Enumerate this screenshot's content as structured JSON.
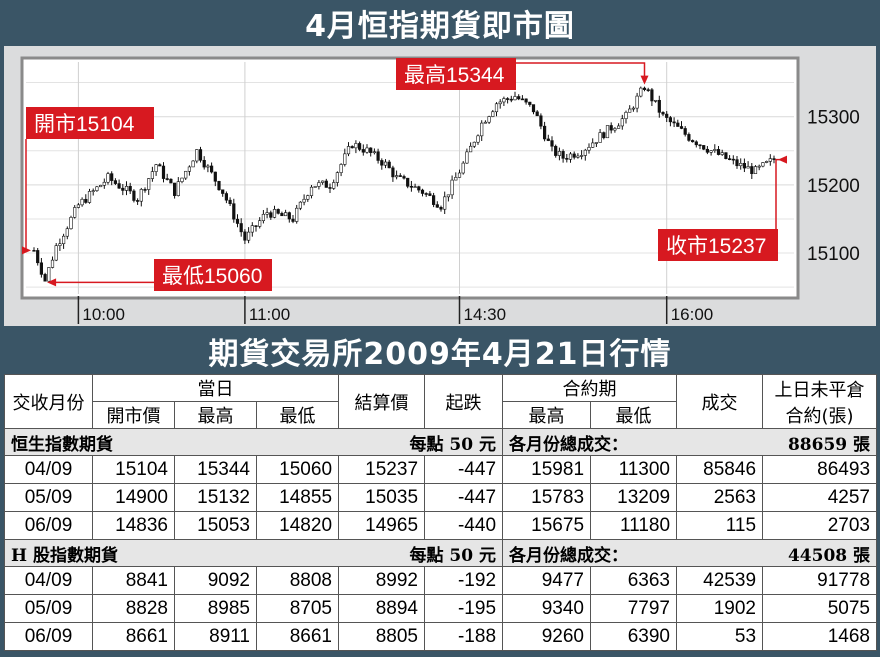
{
  "header": {
    "title": "4月恒指期貨即市圖"
  },
  "chart_data": {
    "type": "candlestick",
    "title": "4月恒指期貨即市圖",
    "x_ticks": [
      "10:00",
      "11:00",
      "14:30",
      "16:00"
    ],
    "y_ticks": [
      "15300",
      "15200",
      "15100"
    ],
    "ylim": [
      15040,
      15380
    ],
    "grid": true,
    "annotations": {
      "open": "開市15104",
      "high": "最高15344",
      "low": "最低15060",
      "close": "收市15237"
    },
    "values": {
      "open": 15104,
      "high": 15344,
      "low": 15060,
      "close": 15237
    },
    "path": [
      [
        0,
        15104
      ],
      [
        3,
        15060
      ],
      [
        6,
        15110
      ],
      [
        12,
        15170
      ],
      [
        20,
        15210
      ],
      [
        28,
        15180
      ],
      [
        33,
        15230
      ],
      [
        38,
        15190
      ],
      [
        44,
        15250
      ],
      [
        51,
        15190
      ],
      [
        57,
        15120
      ],
      [
        63,
        15160
      ],
      [
        70,
        15150
      ],
      [
        75,
        15200
      ],
      [
        80,
        15200
      ],
      [
        86,
        15260
      ],
      [
        90,
        15250
      ],
      [
        95,
        15230
      ],
      [
        98,
        15210
      ],
      [
        105,
        15190
      ],
      [
        110,
        15170
      ],
      [
        116,
        15230
      ],
      [
        121,
        15290
      ],
      [
        125,
        15320
      ],
      [
        130,
        15330
      ],
      [
        135,
        15310
      ],
      [
        140,
        15250
      ],
      [
        143,
        15240
      ],
      [
        148,
        15250
      ],
      [
        155,
        15280
      ],
      [
        160,
        15300
      ],
      [
        165,
        15344
      ],
      [
        170,
        15300
      ],
      [
        177,
        15270
      ],
      [
        183,
        15250
      ],
      [
        190,
        15230
      ],
      [
        195,
        15220
      ],
      [
        200,
        15237
      ]
    ]
  },
  "table_title": "期貨交易所2009年4月21日行情",
  "table": {
    "head": {
      "month": "交收月份",
      "today": "當日",
      "open": "開市價",
      "high": "最高",
      "low": "最低",
      "settle": "結算價",
      "change": "起跌",
      "contract": "合約期",
      "c_high": "最高",
      "c_low": "最低",
      "volume": "成交",
      "oi1": "上日未平倉",
      "oi2": "合約(張)"
    },
    "sections": [
      {
        "name": "恒生指數期貨",
        "point": "每點 50 元",
        "total_label": "各月份總成交：",
        "total": "88659 張",
        "rows": [
          [
            "04/09",
            "15104",
            "15344",
            "15060",
            "15237",
            "-447",
            "15981",
            "11300",
            "85846",
            "86493"
          ],
          [
            "05/09",
            "14900",
            "15132",
            "14855",
            "15035",
            "-447",
            "15783",
            "13209",
            "2563",
            "4257"
          ],
          [
            "06/09",
            "14836",
            "15053",
            "14820",
            "14965",
            "-440",
            "15675",
            "11180",
            "115",
            "2703"
          ]
        ]
      },
      {
        "name": "H 股指數期貨",
        "point": "每點 50 元",
        "total_label": "各月份總成交：",
        "total": "44508 張",
        "rows": [
          [
            "04/09",
            "8841",
            "9092",
            "8808",
            "8992",
            "-192",
            "9477",
            "6363",
            "42539",
            "91778"
          ],
          [
            "05/09",
            "8828",
            "8985",
            "8705",
            "8894",
            "-195",
            "9340",
            "7797",
            "1902",
            "5075"
          ],
          [
            "06/09",
            "8661",
            "8911",
            "8661",
            "8805",
            "-188",
            "9260",
            "6390",
            "53",
            "1468"
          ]
        ]
      }
    ]
  }
}
